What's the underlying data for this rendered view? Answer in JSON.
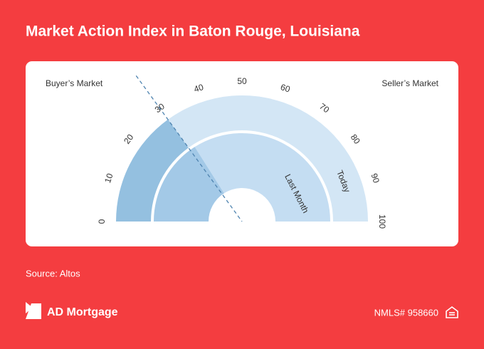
{
  "chart_data": {
    "type": "gauge",
    "title": "Market Action Index in Baton Rouge, Louisiana",
    "left_label": "Buyer’s Market",
    "right_label": "Seller’s Market",
    "lim": [
      0,
      100
    ],
    "ticks": [
      0,
      10,
      20,
      30,
      40,
      50,
      60,
      70,
      80,
      90,
      100
    ],
    "threshold": 30,
    "series": [
      {
        "name": "Today",
        "value": 30,
        "color": "#94c0e0",
        "track_color": "#d3e6f5"
      },
      {
        "name": "Last Month",
        "value": 32,
        "color": "#a3c9e7",
        "track_color": "#c4ddf2"
      }
    ],
    "source": "Source: Altos"
  },
  "footer": {
    "brand": "AD Mortgage",
    "nmls": "NMLS# 958660"
  }
}
